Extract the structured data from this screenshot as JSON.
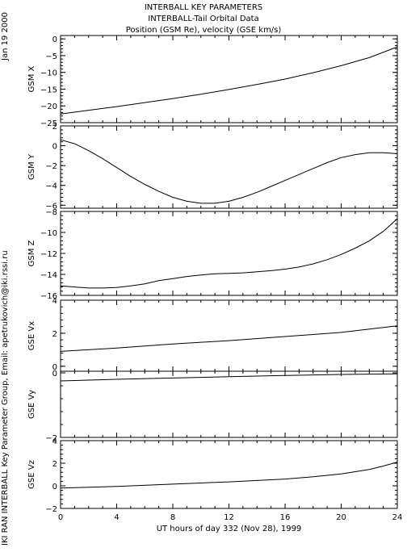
{
  "header": {
    "titles": [
      "INTERBALL KEY PARAMETERS",
      "INTERBALL-Tail Orbital Data",
      "Position (GSM Re), velocity (GSE km/s)"
    ],
    "date_stamp": "Jan 19 2000",
    "credit": "IKI RAN INTERBALL Key Parameter Group, Email: apetrukovich@iki.rssi.ru"
  },
  "chart_data": {
    "type": "line",
    "xlabel": "UT hours of day 332 (Nov 28), 1999",
    "xlim": [
      0,
      24
    ],
    "xticks": [
      0,
      4,
      8,
      12,
      16,
      20,
      24
    ],
    "panels": [
      {
        "ylabel": "GSM X",
        "ylim": [
          -25,
          1
        ],
        "yticks": [
          0,
          -5,
          -10,
          -15,
          -20,
          -25
        ],
        "x": [
          0,
          2,
          4,
          6,
          8,
          10,
          12,
          14,
          16,
          18,
          20,
          22,
          24
        ],
        "y": [
          -22.4,
          -21.3,
          -20.2,
          -19.0,
          -17.8,
          -16.5,
          -15.1,
          -13.6,
          -12.0,
          -10.1,
          -8.0,
          -5.6,
          -2.4
        ]
      },
      {
        "ylabel": "GSM Y",
        "ylim": [
          -6.3,
          2
        ],
        "yticks": [
          2,
          0,
          -2,
          -4,
          -6
        ],
        "x": [
          0,
          1,
          2,
          3,
          4,
          5,
          6,
          7,
          8,
          9,
          10,
          11,
          12,
          13,
          14,
          15,
          16,
          17,
          18,
          19,
          20,
          21,
          22,
          23,
          24
        ],
        "y": [
          0.6,
          0.2,
          -0.5,
          -1.3,
          -2.2,
          -3.1,
          -3.9,
          -4.6,
          -5.2,
          -5.6,
          -5.8,
          -5.8,
          -5.6,
          -5.2,
          -4.7,
          -4.1,
          -3.5,
          -2.9,
          -2.3,
          -1.7,
          -1.2,
          -0.9,
          -0.7,
          -0.7,
          -0.8
        ]
      },
      {
        "ylabel": "GSM Z",
        "ylim": [
          -16,
          -8
        ],
        "yticks": [
          -8,
          -10,
          -12,
          -14,
          -16
        ],
        "x": [
          0,
          1,
          2,
          3,
          4,
          5,
          6,
          7,
          8,
          9,
          10,
          11,
          12,
          13,
          14,
          15,
          16,
          17,
          18,
          19,
          20,
          21,
          22,
          23,
          24
        ],
        "y": [
          -15.1,
          -15.2,
          -15.3,
          -15.3,
          -15.25,
          -15.1,
          -14.9,
          -14.6,
          -14.4,
          -14.2,
          -14.05,
          -13.95,
          -13.9,
          -13.85,
          -13.75,
          -13.65,
          -13.5,
          -13.3,
          -13.0,
          -12.6,
          -12.1,
          -11.5,
          -10.8,
          -9.9,
          -8.7
        ]
      },
      {
        "ylabel": "GSE Vx",
        "ylim": [
          -0.3,
          4
        ],
        "yticks": [
          4,
          2,
          0
        ],
        "x": [
          0,
          4,
          8,
          12,
          16,
          20,
          24
        ],
        "y": [
          0.9,
          1.1,
          1.35,
          1.55,
          1.8,
          2.05,
          2.45
        ]
      },
      {
        "ylabel": "GSE Vy",
        "ylim": [
          -2,
          0.05
        ],
        "yticks": [
          0,
          -2
        ],
        "x": [
          0,
          4,
          8,
          12,
          16,
          20,
          24
        ],
        "y": [
          -0.25,
          -0.2,
          -0.16,
          -0.12,
          -0.08,
          -0.05,
          -0.03
        ]
      },
      {
        "ylabel": "GSE Vz",
        "ylim": [
          -2,
          4
        ],
        "yticks": [
          4,
          2,
          0,
          -2
        ],
        "x": [
          0,
          4,
          8,
          12,
          16,
          18,
          20,
          22,
          23,
          24
        ],
        "y": [
          -0.2,
          -0.05,
          0.15,
          0.35,
          0.6,
          0.8,
          1.05,
          1.45,
          1.75,
          2.1
        ]
      }
    ]
  }
}
